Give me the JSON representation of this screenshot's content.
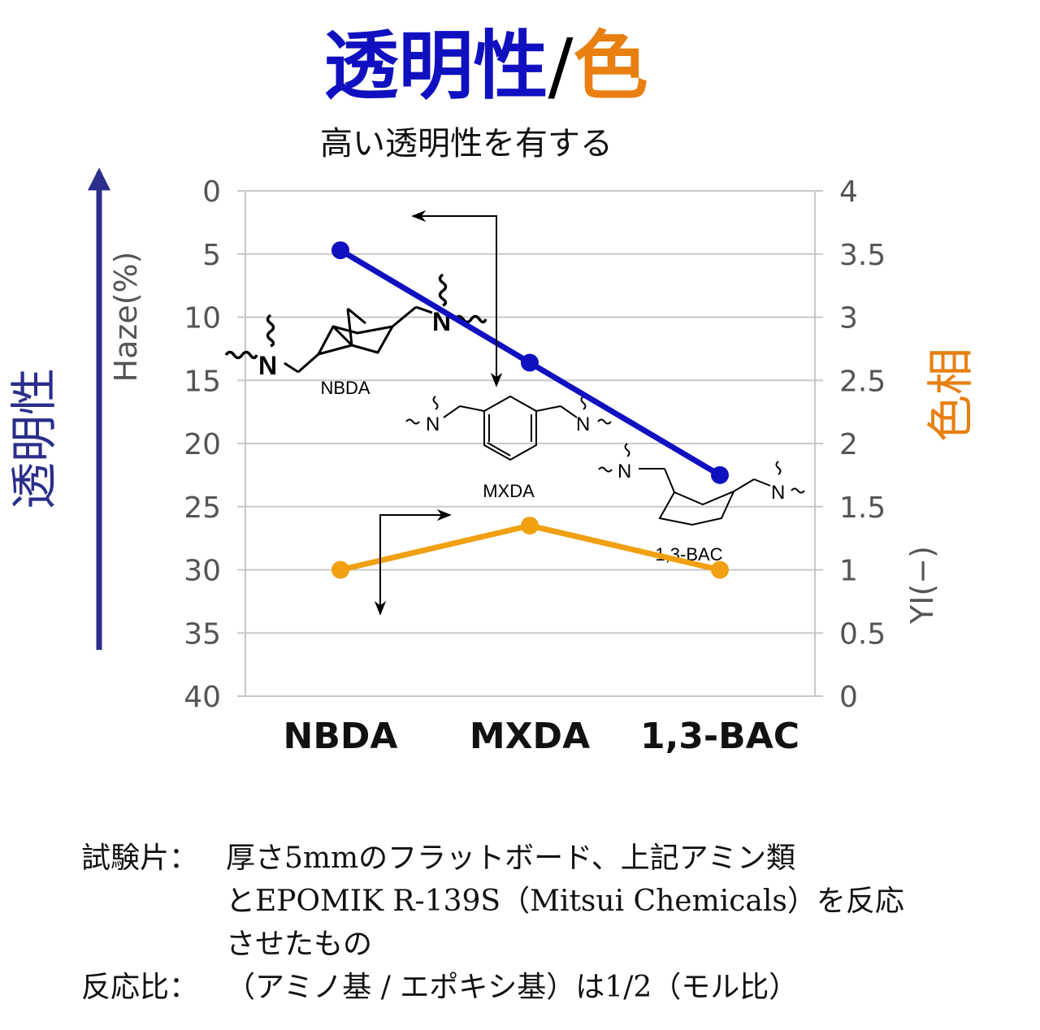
{
  "header": {
    "title_part1": "透明性",
    "title_slash": "/",
    "title_part2": "色",
    "subtitle": "高い透明性を有する"
  },
  "side_labels": {
    "left": "透明性",
    "right": "色相"
  },
  "colors": {
    "transparency_blue": "#1010C0",
    "hue_orange": "#F0A010",
    "title_orange": "#E87F10",
    "arrow_navy": "#2B2E8A"
  },
  "chart_data": {
    "type": "line",
    "categories": [
      "NBDA",
      "MXDA",
      "1,3-BAC"
    ],
    "ylabel": "Haze(%)",
    "y2label": "YI(−)",
    "ylim": [
      0,
      40
    ],
    "y_inverted": true,
    "y_ticks": [
      "0",
      "5",
      "10",
      "15",
      "20",
      "25",
      "30",
      "35",
      "40"
    ],
    "y2lim": [
      0,
      4
    ],
    "y2_ticks": [
      "4",
      "3.5",
      "3",
      "2.5",
      "2",
      "1.5",
      "1",
      "0.5",
      "0"
    ],
    "grid": true,
    "series": [
      {
        "axis": "left",
        "color": "#1010C0",
        "values": [
          4.7,
          13.6,
          22.5
        ]
      },
      {
        "axis": "right",
        "color": "#F0A010",
        "values": [
          1.0,
          1.35,
          1.0
        ]
      }
    ],
    "molecule_labels": [
      "NBDA",
      "MXDA",
      "1,3-BAC"
    ],
    "atom_symbol": "N"
  },
  "notes": {
    "specimen_label": "試験片：",
    "specimen_line1": "厚さ5mmのフラットボード、上記アミン類",
    "specimen_line2": "とEPOMIK R-139S（Mitsui Chemicals）を反応",
    "specimen_line3": "させたもの",
    "ratio_label": "反応比：",
    "ratio_text": "（アミノ基 / エポキシ基）は1/2（モル比）"
  }
}
